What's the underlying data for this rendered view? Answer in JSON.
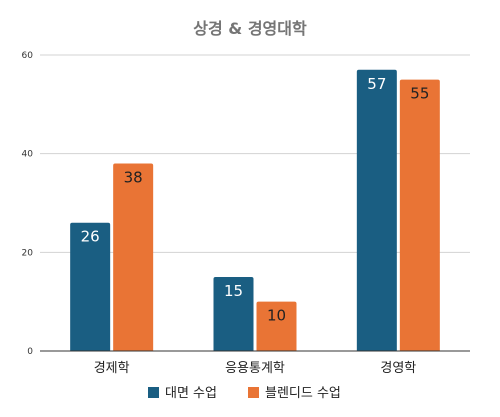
{
  "chart_data": {
    "type": "bar",
    "title": "상경 & 경영대학",
    "xlabel": "",
    "ylabel": "",
    "categories": [
      "경제학",
      "응용통계학",
      "경영학"
    ],
    "series": [
      {
        "name": "대면 수업",
        "values": [
          26,
          15,
          57
        ],
        "color": "#1a5e82",
        "label_color": "#ffffff"
      },
      {
        "name": "블렌디드 수업",
        "values": [
          38,
          10,
          55
        ],
        "color": "#e97435",
        "label_color": "#222222"
      }
    ],
    "ylim": [
      0,
      60
    ],
    "yticks": [
      0,
      20,
      40,
      60
    ],
    "grid": true,
    "legend_position": "bottom"
  }
}
